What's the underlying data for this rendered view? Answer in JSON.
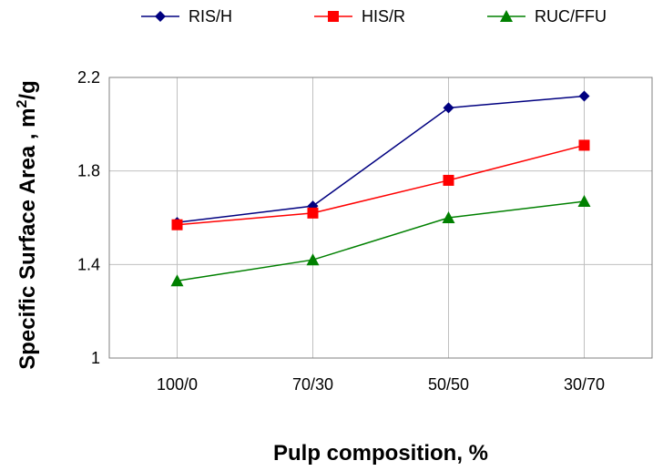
{
  "chart_data": {
    "type": "line",
    "categories": [
      "100/0",
      "70/30",
      "50/50",
      "30/70"
    ],
    "series": [
      {
        "name": "RIS/H",
        "values": [
          1.58,
          1.65,
          2.07,
          2.12
        ],
        "color": "#000080",
        "marker": "diamond"
      },
      {
        "name": "HIS/R",
        "values": [
          1.57,
          1.62,
          1.76,
          1.91
        ],
        "color": "#ff0000",
        "marker": "square"
      },
      {
        "name": "RUC/FFU",
        "values": [
          1.33,
          1.42,
          1.6,
          1.67
        ],
        "color": "#008000",
        "marker": "triangle"
      }
    ],
    "xlabel": "Pulp composition, %",
    "ylabel": {
      "main": "Specific Surface Area , m",
      "superscript": "2",
      "suffix": "/g"
    },
    "ylim": [
      1,
      2.2
    ],
    "yticks": [
      "1",
      "1.4",
      "1.8",
      "2.2"
    ],
    "grid": true,
    "legend": "top"
  }
}
